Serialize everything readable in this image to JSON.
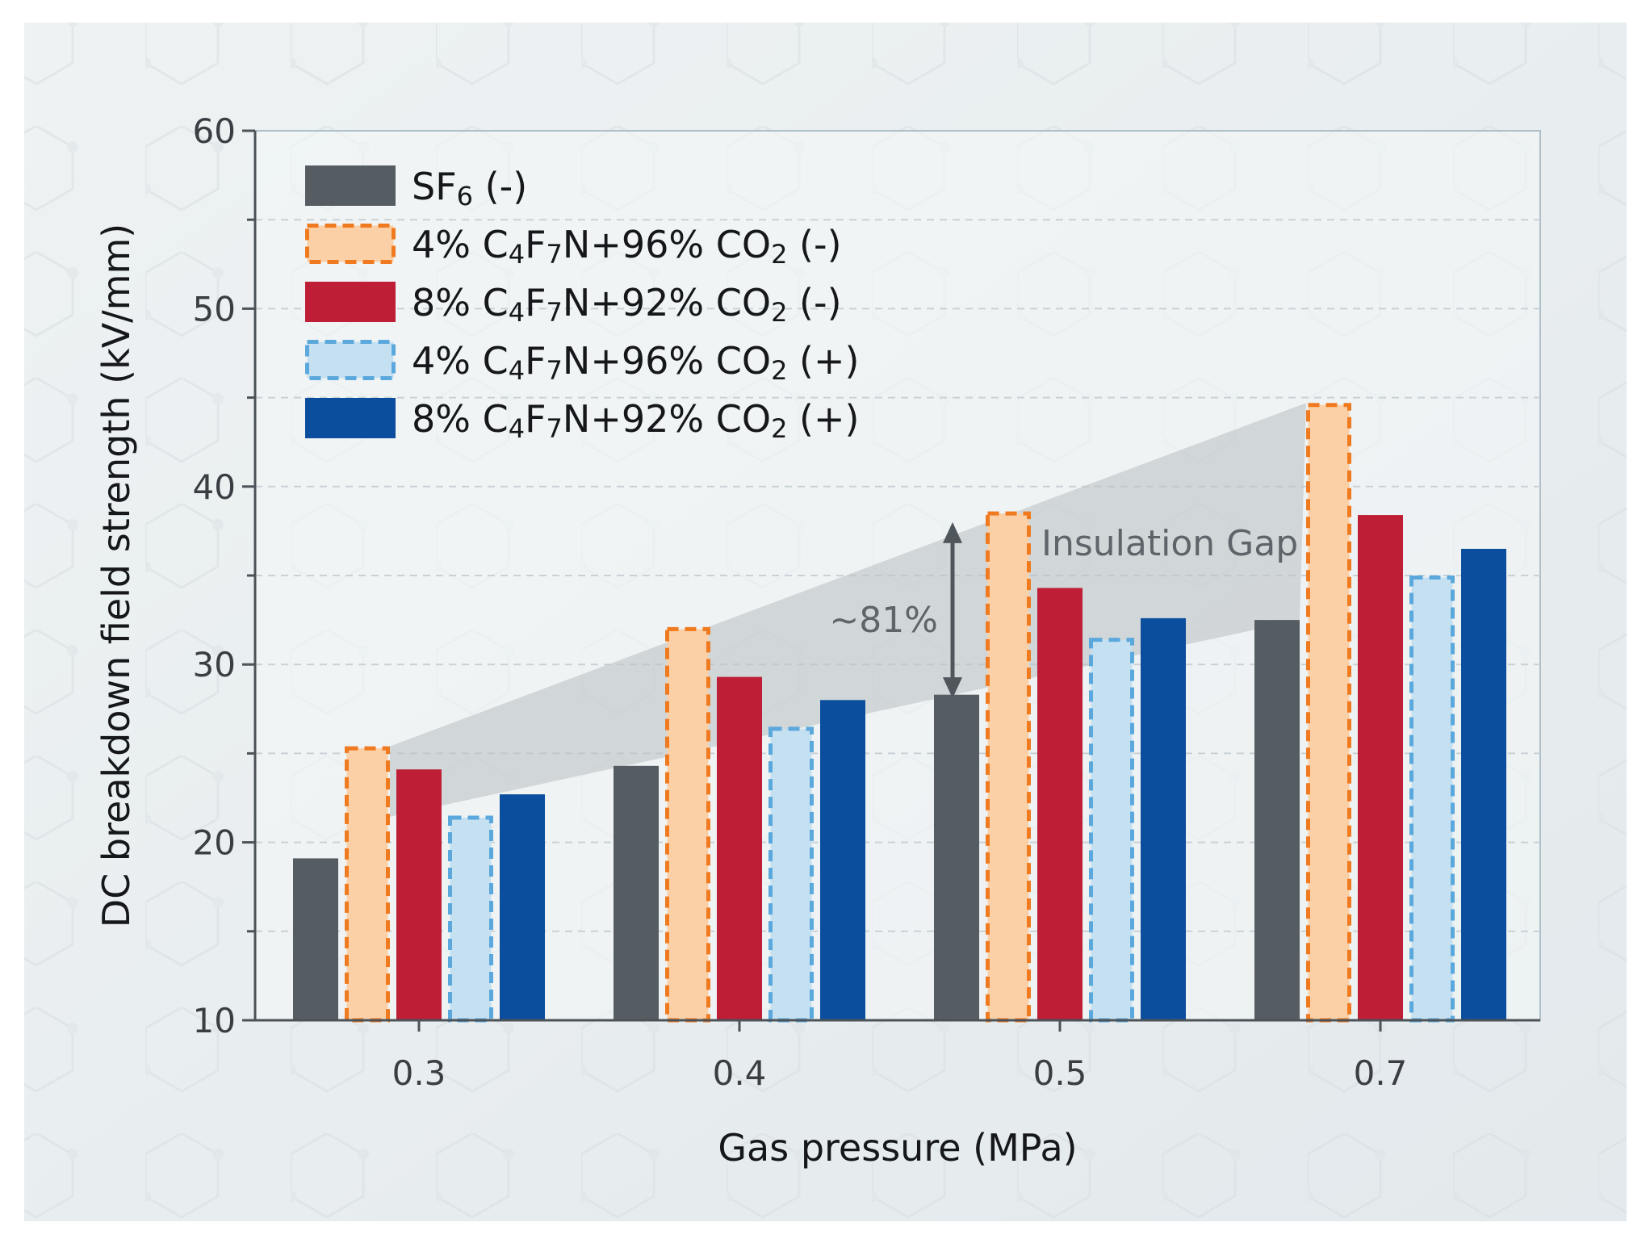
{
  "chart_data": {
    "type": "bar",
    "title": "",
    "xlabel": "Gas pressure (MPa)",
    "ylabel": "DC breakdown field strength (kV/mm)",
    "ylim": [
      10,
      60
    ],
    "yticks": [
      "10",
      "20",
      "30",
      "40",
      "50",
      "60"
    ],
    "categories": [
      "0.3",
      "0.4",
      "0.5",
      "0.7"
    ],
    "series": [
      {
        "name": "SF6 (-)",
        "legend": {
          "pre": "SF",
          "sub1": "6",
          "mid": " (-)",
          "sub2": "",
          "post": ""
        },
        "color": "#555d63",
        "style": "solid",
        "values": [
          19.1,
          24.3,
          28.3,
          32.5
        ]
      },
      {
        "name": "4% C4F7N+96% CO2 (-)",
        "legend": {
          "pre": "4% C",
          "sub1": "4",
          "mid": "F",
          "sub1b": "7",
          "mid2": "N+96% CO",
          "sub2": "2",
          "post": " (-)"
        },
        "color": "#fcd0a6",
        "edge": "#ef7a1f",
        "style": "dashed",
        "values": [
          25.4,
          32.1,
          38.6,
          44.7
        ]
      },
      {
        "name": "8% C4F7N+92% CO2 (-)",
        "legend": {
          "pre": "8% C",
          "sub1": "4",
          "mid": "F",
          "sub1b": "7",
          "mid2": "N+92% CO",
          "sub2": "2",
          "post": " (-)"
        },
        "color": "#be1e36",
        "style": "solid",
        "values": [
          24.1,
          29.3,
          34.3,
          38.4
        ]
      },
      {
        "name": "4% C4F7N+96% CO2 (+)",
        "legend": {
          "pre": "4% C",
          "sub1": "4",
          "mid": "F",
          "sub1b": "7",
          "mid2": "N+96% CO",
          "sub2": "2",
          "post": " (+)"
        },
        "color": "#c4e0f1",
        "edge": "#5ba8dc",
        "style": "dashed",
        "values": [
          21.5,
          26.5,
          31.5,
          35.0
        ]
      },
      {
        "name": "8% C4F7N+92% CO2 (+)",
        "legend": {
          "pre": "8% C",
          "sub1": "4",
          "mid": "F",
          "sub1b": "7",
          "mid2": "N+92% CO",
          "sub2": "2",
          "post": " (+)"
        },
        "color": "#0c4e9e",
        "style": "solid",
        "values": [
          22.7,
          28.0,
          32.6,
          36.5
        ]
      }
    ],
    "annotations": {
      "gap_label": "Insulation Gap",
      "percent_label": "~81%",
      "percent_value": 81
    },
    "grid": "dashed horizontal",
    "legend_position": "top-left"
  }
}
